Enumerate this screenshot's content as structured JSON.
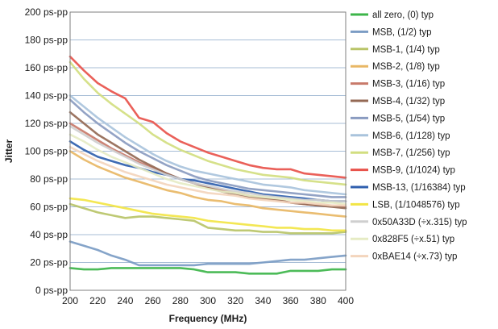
{
  "chart_data": {
    "type": "line",
    "title": "",
    "xlabel": "Frequency (MHz)",
    "ylabel": "Jitter",
    "xlim": [
      200,
      400
    ],
    "ylim": [
      0,
      200
    ],
    "x_ticks": [
      "200",
      "220",
      "240",
      "260",
      "280",
      "300",
      "320",
      "340",
      "360",
      "380",
      "400"
    ],
    "y_ticks": [
      "0 ps-pp",
      "20 ps-pp",
      "40 ps-pp",
      "60 ps-pp",
      "80 ps-pp",
      "100 ps-pp",
      "120 ps-pp",
      "140 ps-pp",
      "160 ps-pp",
      "180 ps-pp",
      "200 ps-pp"
    ],
    "grid": "horizontal",
    "legend_position": "right",
    "x": [
      200,
      210,
      220,
      230,
      240,
      250,
      260,
      270,
      280,
      290,
      300,
      310,
      320,
      330,
      340,
      350,
      360,
      370,
      380,
      390,
      400
    ],
    "series": [
      {
        "name": "all zero, (0) typ",
        "color": "#3db54a",
        "values": [
          16,
          15,
          15,
          16,
          16,
          16,
          16,
          16,
          16,
          15,
          13,
          13,
          13,
          12,
          12,
          12,
          14,
          14,
          14,
          15,
          15
        ]
      },
      {
        "name": "MSB, (1/2) typ",
        "color": "#7b9cc4",
        "values": [
          35,
          32,
          29,
          25,
          22,
          18,
          18,
          18,
          18,
          18,
          19,
          19,
          19,
          19,
          20,
          21,
          22,
          22,
          23,
          24,
          25
        ]
      },
      {
        "name": "MSB-1, (1/4) typ",
        "color": "#b9c468",
        "values": [
          62,
          59,
          56,
          54,
          52,
          53,
          53,
          52,
          51,
          50,
          45,
          44,
          43,
          43,
          42,
          42,
          41,
          41,
          41,
          41,
          42
        ]
      },
      {
        "name": "MSB-2, (1/8) typ",
        "color": "#e8b765",
        "values": [
          100,
          94,
          89,
          85,
          81,
          78,
          75,
          72,
          70,
          67,
          65,
          64,
          62,
          61,
          59,
          58,
          57,
          56,
          55,
          54,
          53
        ]
      },
      {
        "name": "MSB-3, (1/16) typ",
        "color": "#c87a6a",
        "values": [
          120,
          114,
          108,
          102,
          97,
          92,
          88,
          84,
          80,
          77,
          74,
          72,
          70,
          68,
          66,
          65,
          63,
          62,
          61,
          61,
          60
        ]
      },
      {
        "name": "MSB-4, (1/32) typ",
        "color": "#946954",
        "values": [
          128,
          120,
          112,
          106,
          100,
          94,
          89,
          84,
          80,
          77,
          74,
          71,
          69,
          67,
          66,
          65,
          63,
          62,
          61,
          60,
          59
        ]
      },
      {
        "name": "MSB-5, (1/54) typ",
        "color": "#8a9bc0",
        "values": [
          137,
          128,
          120,
          113,
          106,
          100,
          95,
          90,
          86,
          82,
          79,
          77,
          75,
          73,
          72,
          71,
          70,
          69,
          68,
          67,
          67
        ]
      },
      {
        "name": "MSB-6, (1/128) typ",
        "color": "#a9c3dc",
        "values": [
          140,
          132,
          124,
          117,
          110,
          104,
          98,
          93,
          89,
          86,
          84,
          82,
          80,
          78,
          76,
          75,
          74,
          72,
          71,
          70,
          69
        ]
      },
      {
        "name": "MSB-7, (1/256) typ",
        "color": "#d2de80",
        "values": [
          164,
          152,
          142,
          134,
          127,
          120,
          112,
          106,
          101,
          97,
          93,
          90,
          87,
          85,
          83,
          82,
          81,
          79,
          78,
          77,
          76
        ]
      },
      {
        "name": "MSB-9, (1/1024) typ",
        "color": "#e8534b",
        "values": [
          168,
          158,
          149,
          143,
          138,
          124,
          121,
          113,
          107,
          103,
          99,
          96,
          93,
          90,
          88,
          87,
          87,
          84,
          83,
          82,
          81
        ]
      },
      {
        "name": "MSB-13, (1/16384) typ",
        "color": "#2f5fae",
        "values": [
          107,
          101,
          96,
          93,
          90,
          88,
          85,
          83,
          80,
          79,
          77,
          75,
          73,
          71,
          69,
          68,
          67,
          66,
          65,
          64,
          64
        ]
      },
      {
        "name": "LSB, (1/1048576) typ",
        "color": "#f2e545",
        "values": [
          66,
          65,
          63,
          61,
          59,
          57,
          55,
          54,
          53,
          52,
          50,
          49,
          48,
          47,
          46,
          45,
          45,
          44,
          44,
          43,
          43
        ]
      },
      {
        "name": "0x50A33D (÷x.315) typ",
        "color": "#cfcfcf",
        "values": [
          118,
          112,
          106,
          101,
          96,
          91,
          87,
          83,
          80,
          77,
          75,
          73,
          71,
          70,
          68,
          67,
          66,
          65,
          65,
          64,
          64
        ]
      },
      {
        "name": "0x828F5 (÷x.51) typ",
        "color": "#e6ebc4",
        "values": [
          112,
          107,
          101,
          96,
          92,
          88,
          84,
          80,
          77,
          75,
          73,
          71,
          70,
          68,
          67,
          66,
          65,
          64,
          63,
          63,
          62
        ]
      },
      {
        "name": "0xBAE14 (÷x.73) typ",
        "color": "#f3d5bd",
        "values": [
          103,
          98,
          93,
          89,
          85,
          82,
          79,
          76,
          74,
          72,
          70,
          69,
          68,
          66,
          65,
          64,
          63,
          63,
          62,
          61,
          61
        ]
      }
    ]
  }
}
